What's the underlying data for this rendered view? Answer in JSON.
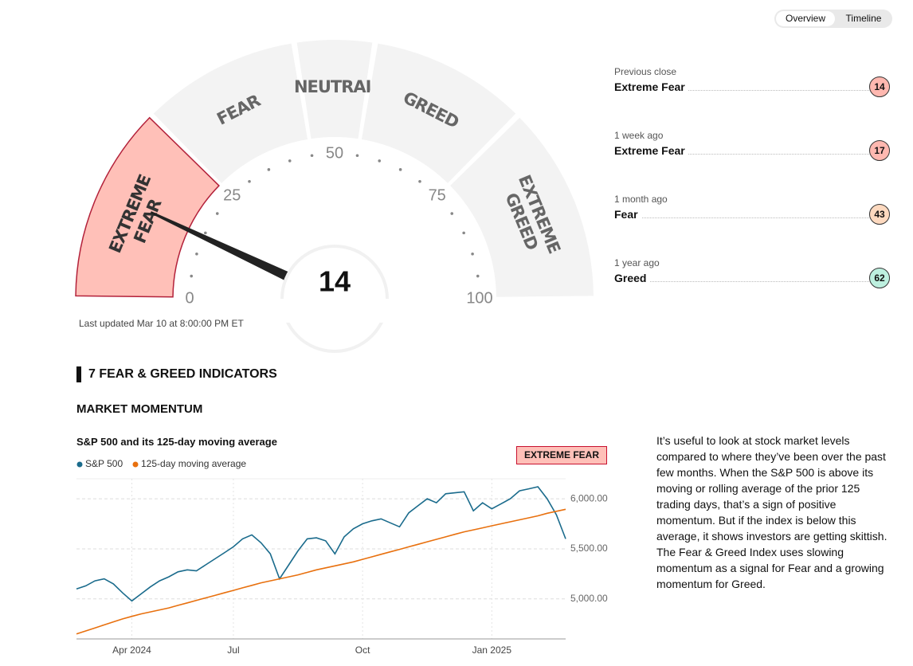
{
  "tabs": [
    "Overview",
    "Timeline"
  ],
  "gauge": {
    "value": 14,
    "range": [
      0,
      100
    ],
    "ticks": [
      0,
      25,
      50,
      75,
      100
    ],
    "minor_tick_step": 5,
    "segments": [
      {
        "label": [
          "EXTREME",
          "FEAR"
        ],
        "range": [
          0,
          25
        ],
        "active": true
      },
      {
        "label": [
          "FEAR"
        ],
        "range": [
          25,
          45
        ],
        "active": false
      },
      {
        "label": [
          "NEUTRAL"
        ],
        "range": [
          45,
          55
        ],
        "active": false
      },
      {
        "label": [
          "GREED"
        ],
        "range": [
          55,
          75
        ],
        "active": false
      },
      {
        "label": [
          "EXTREME",
          "GREED"
        ],
        "range": [
          75,
          100
        ],
        "active": false
      }
    ],
    "updated": "Last updated Mar 10 at 8:00:00 PM ET"
  },
  "history": [
    {
      "caption": "Previous close",
      "rating": "Extreme Fear",
      "value": 14,
      "color": "#ffb8b0"
    },
    {
      "caption": "1 week ago",
      "rating": "Extreme Fear",
      "value": 17,
      "color": "#ffb8b0"
    },
    {
      "caption": "1 month ago",
      "rating": "Fear",
      "value": 43,
      "color": "#fdd9bf"
    },
    {
      "caption": "1 year ago",
      "rating": "Greed",
      "value": 62,
      "color": "#bdf0df"
    }
  ],
  "section_title": "7 FEAR & GREED INDICATORS",
  "indicator_title": "MARKET MOMENTUM",
  "description": "It’s useful to look at stock market levels compared to where they’ve been over the past few months. When the S&P 500 is above its moving or rolling average of the prior 125 trading days, that’s a sign of positive momentum. But if the index is below this average, it shows investors are getting skittish. The Fear & Greed Index uses slowing momentum as a signal for Fear and a growing momentum for Greed.",
  "chart_data": {
    "type": "line",
    "title": "S&P 500 and its 125-day moving average",
    "badge": "EXTREME FEAR",
    "categories": [
      null,
      null,
      null,
      null,
      null,
      null,
      "Apr 2024",
      null,
      null,
      null,
      null,
      null,
      null,
      null,
      null,
      null,
      null,
      "Jul",
      null,
      null,
      null,
      null,
      null,
      null,
      null,
      null,
      null,
      null,
      null,
      null,
      null,
      "Oct",
      null,
      null,
      null,
      null,
      null,
      null,
      null,
      null,
      null,
      null,
      null,
      null,
      null,
      "Jan 2025",
      null,
      null,
      null,
      null,
      null,
      null,
      null,
      null
    ],
    "series": [
      {
        "name": "S&P 500",
        "color": "#1a6b8c",
        "values": [
          5100,
          5130,
          5180,
          5200,
          5150,
          5060,
          4980,
          5050,
          5120,
          5180,
          5220,
          5270,
          5290,
          5280,
          5340,
          5400,
          5460,
          5520,
          5600,
          5640,
          5560,
          5450,
          5200,
          5340,
          5480,
          5600,
          5610,
          5580,
          5450,
          5620,
          5700,
          5750,
          5780,
          5800,
          5760,
          5720,
          5860,
          5930,
          6000,
          5960,
          6050,
          6060,
          6070,
          5880,
          5960,
          5900,
          5950,
          6000,
          6080,
          6100,
          6120,
          6000,
          5840,
          5600
        ]
      },
      {
        "name": "125-day moving average",
        "color": "#e8700e",
        "values": [
          4650,
          4680,
          4710,
          4740,
          4770,
          4800,
          4825,
          4850,
          4870,
          4890,
          4910,
          4935,
          4960,
          4985,
          5010,
          5035,
          5060,
          5085,
          5110,
          5135,
          5160,
          5180,
          5200,
          5220,
          5240,
          5265,
          5290,
          5310,
          5330,
          5350,
          5370,
          5395,
          5420,
          5445,
          5470,
          5495,
          5520,
          5545,
          5570,
          5595,
          5620,
          5645,
          5670,
          5690,
          5710,
          5730,
          5750,
          5770,
          5790,
          5810,
          5830,
          5855,
          5875,
          5895
        ]
      }
    ],
    "ylim": [
      4600,
      6200
    ],
    "yticks": [
      {
        "value": 5000,
        "label": "5,000.00"
      },
      {
        "value": 5500,
        "label": "5,500.00"
      },
      {
        "value": 6000,
        "label": "6,000.00"
      }
    ],
    "grid": true
  }
}
